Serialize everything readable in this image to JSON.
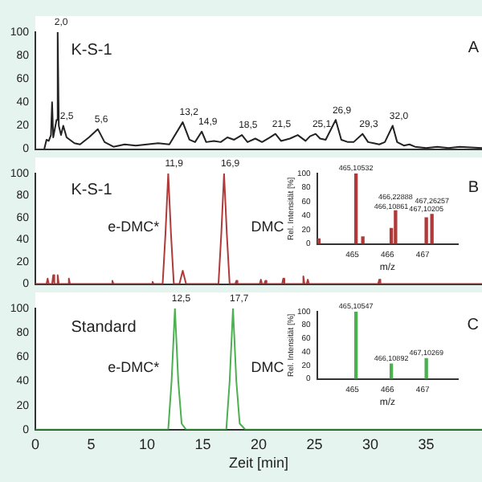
{
  "chart_data": [
    {
      "type": "line",
      "annotations": [
        "K-S-1",
        "A",
        {
          "text": "2,0",
          "x": 2.0,
          "y": 100
        },
        {
          "text": "2,5",
          "x": 2.5,
          "y": 20
        },
        {
          "text": "5,6",
          "x": 5.6,
          "y": 17
        },
        {
          "text": "13,2",
          "x": 13.2,
          "y": 23
        },
        {
          "text": "14,9",
          "x": 14.9,
          "y": 15
        },
        {
          "text": "18,5",
          "x": 18.5,
          "y": 12
        },
        {
          "text": "21,5",
          "x": 21.5,
          "y": 13
        },
        {
          "text": "25,1",
          "x": 25.1,
          "y": 13
        },
        {
          "text": "26,9",
          "x": 26.9,
          "y": 25
        },
        {
          "text": "29,3",
          "x": 29.3,
          "y": 13
        },
        {
          "text": "32,0",
          "x": 32.0,
          "y": 20
        }
      ],
      "x": [
        0.8,
        1.0,
        1.2,
        1.4,
        1.5,
        1.6,
        1.8,
        1.9,
        2.0,
        2.1,
        2.3,
        2.5,
        2.8,
        3.5,
        4.0,
        4.8,
        5.6,
        6.2,
        7,
        8,
        9,
        10,
        11,
        12,
        13.2,
        13.8,
        14.3,
        14.9,
        15.3,
        16,
        16.6,
        17.2,
        17.8,
        18.5,
        19,
        19.7,
        20.3,
        21,
        21.5,
        22,
        22.8,
        23.5,
        24.2,
        24.6,
        25.1,
        25.5,
        26,
        26.9,
        27.4,
        28,
        28.5,
        29.3,
        29.8,
        30.3,
        30.8,
        31.3,
        32,
        32.4,
        33,
        33.5,
        34,
        35,
        36,
        37,
        38,
        40
      ],
      "values": [
        0,
        8,
        7,
        12,
        40,
        10,
        20,
        25,
        100,
        20,
        12,
        20,
        10,
        5,
        4,
        10,
        17,
        6,
        2,
        4,
        3,
        4,
        5,
        4,
        23,
        8,
        6,
        15,
        6,
        7,
        6,
        10,
        8,
        12,
        6,
        9,
        6,
        10,
        13,
        7,
        9,
        12,
        7,
        11,
        13,
        9,
        8,
        25,
        8,
        6,
        6,
        13,
        6,
        5,
        4,
        6,
        20,
        6,
        3,
        4,
        2,
        1,
        2,
        1,
        2,
        1
      ],
      "color": "#222222",
      "xlim": [
        0,
        40
      ],
      "xticks": [
        0,
        5,
        10,
        15,
        20,
        25,
        30,
        35
      ],
      "ylim": [
        0,
        100
      ],
      "yticks": [
        0,
        20,
        40,
        60,
        80,
        100
      ],
      "tick_labels": "y"
    },
    {
      "type": "line",
      "annotations": [
        "K-S-1",
        "B",
        "e-DMC*",
        "DMC",
        {
          "text": "11,9",
          "x": 11.9,
          "y": 100
        },
        {
          "text": "16,9",
          "x": 16.9,
          "y": 100
        }
      ],
      "x": [
        0,
        1.0,
        1.1,
        1.2,
        1.5,
        1.6,
        1.7,
        1.9,
        2.0,
        2.1,
        2.9,
        3.0,
        3.1,
        6.8,
        6.9,
        7.0,
        10.4,
        10.5,
        10.6,
        11.4,
        11.65,
        11.9,
        12.15,
        12.4,
        12.9,
        13.2,
        13.5,
        16.4,
        16.65,
        16.9,
        17.15,
        17.4,
        17.9,
        18.0,
        18.1,
        20.1,
        20.2,
        20.3,
        20.5,
        20.6,
        20.7,
        22.1,
        22.2,
        22.3,
        23.9,
        24.0,
        24.1,
        24.3,
        24.4,
        24.5,
        30.7,
        30.8,
        30.9,
        40
      ],
      "values": [
        0,
        0,
        5,
        0,
        0,
        8,
        0,
        0,
        8,
        0,
        0,
        5,
        0,
        0,
        3,
        0,
        0,
        2,
        0,
        0,
        45,
        100,
        45,
        0,
        0,
        12,
        0,
        0,
        45,
        100,
        45,
        0,
        0,
        3,
        0,
        0,
        4,
        0,
        0,
        3,
        0,
        0,
        5,
        0,
        0,
        7,
        0,
        0,
        4,
        0,
        0,
        4,
        0,
        0
      ],
      "color": "#b03a3a",
      "xlim": [
        0,
        40
      ],
      "xticks": [
        0,
        5,
        10,
        15,
        20,
        25,
        30,
        35
      ],
      "ylim": [
        0,
        100
      ],
      "yticks": [
        0,
        20,
        40,
        60,
        80,
        100
      ],
      "tick_labels": "y"
    },
    {
      "type": "bar",
      "xlabel": "m/z",
      "ylabel": "Rel. Intensität [%]",
      "x": [
        464.05,
        465.10532,
        465.3,
        466.10861,
        466.22888,
        467.10205,
        467.26257
      ],
      "values": [
        7,
        100,
        10,
        22,
        47,
        37,
        42
      ],
      "value_labels": [
        null,
        "465,10532",
        null,
        "466,10861",
        "466,22888",
        "467,10205",
        "467,26257"
      ],
      "color": "#b03a3a",
      "xlim": [
        464,
        468
      ],
      "xticks": [
        465,
        466,
        467
      ],
      "ylim": [
        0,
        100
      ],
      "yticks": [
        0,
        20,
        40,
        60,
        80,
        100
      ]
    },
    {
      "type": "line",
      "xlabel": "Zeit [min]",
      "annotations": [
        "Standard",
        "C",
        "e-DMC*",
        "DMC",
        {
          "text": "12,5",
          "x": 12.5,
          "y": 100
        },
        {
          "text": "17,7",
          "x": 17.7,
          "y": 100
        }
      ],
      "x": [
        0,
        11.9,
        12.2,
        12.5,
        12.8,
        13.1,
        13.5,
        17.1,
        17.4,
        17.7,
        18.0,
        18.3,
        18.8,
        40
      ],
      "values": [
        0,
        0,
        40,
        100,
        40,
        5,
        0,
        0,
        40,
        100,
        40,
        5,
        0,
        0
      ],
      "color": "#4caf50",
      "xlim": [
        0,
        40
      ],
      "xticks": [
        0,
        5,
        10,
        15,
        20,
        25,
        30,
        35
      ],
      "ylim": [
        0,
        100
      ],
      "yticks": [
        0,
        20,
        40,
        60,
        80,
        100
      ]
    },
    {
      "type": "bar",
      "xlabel": "m/z",
      "ylabel": "Rel. Intensität [%]",
      "x": [
        465.10547,
        466.10892,
        467.10269
      ],
      "values": [
        100,
        22,
        30
      ],
      "value_labels": [
        "465,10547",
        "466,10892",
        "467,10269"
      ],
      "color": "#4caf50",
      "xlim": [
        464,
        468
      ],
      "xticks": [
        465,
        466,
        467
      ],
      "ylim": [
        0,
        100
      ],
      "yticks": [
        0,
        20,
        40,
        60,
        80,
        100
      ]
    }
  ]
}
